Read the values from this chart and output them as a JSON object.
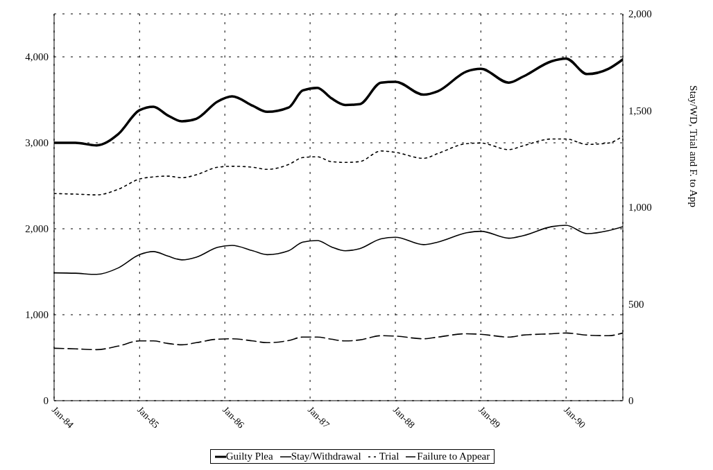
{
  "chart_data": {
    "type": "line",
    "y2label": "Stay/WD, Trial and F. to App",
    "x": [
      "1984-01",
      "1984-04",
      "1984-07",
      "1984-10",
      "1985-01",
      "1985-03",
      "1985-05",
      "1985-07",
      "1985-09",
      "1985-12",
      "1986-02",
      "1986-05",
      "1986-07",
      "1986-10",
      "1986-12",
      "1987-02",
      "1987-04",
      "1987-06",
      "1987-08",
      "1987-11",
      "1988-01",
      "1988-05",
      "1988-07",
      "1988-11",
      "1989-01",
      "1989-05",
      "1989-07",
      "1989-11",
      "1990-01",
      "1990-04",
      "1990-07",
      "1990-09"
    ],
    "series": [
      {
        "name": "Guilty Plea",
        "color": "#000000",
        "line_style": "solid",
        "values": [
          3000,
          3000,
          2970,
          3100,
          3380,
          3420,
          3320,
          3250,
          3280,
          3480,
          3540,
          3430,
          3360,
          3410,
          3610,
          3640,
          3520,
          3440,
          3450,
          3700,
          3710,
          3560,
          3600,
          3830,
          3860,
          3700,
          3770,
          3950,
          3980,
          3800,
          3860,
          3970
        ]
      },
      {
        "name": "Stay/Withdrawal",
        "color": "#000000",
        "line_style": "solid",
        "axis": "y2",
        "values": [
          661,
          659,
          653,
          686,
          755,
          771,
          748,
          728,
          742,
          793,
          803,
          775,
          755,
          775,
          820,
          828,
          796,
          775,
          786,
          837,
          845,
          807,
          820,
          868,
          876,
          840,
          853,
          900,
          907,
          864,
          879,
          900
        ]
      },
      {
        "name": "Trial",
        "color": "#000000",
        "line_style": "dotted",
        "axis": "y2",
        "values": [
          1071,
          1068,
          1064,
          1093,
          1146,
          1157,
          1161,
          1153,
          1168,
          1207,
          1212,
          1207,
          1196,
          1221,
          1257,
          1261,
          1236,
          1232,
          1236,
          1291,
          1284,
          1253,
          1278,
          1329,
          1332,
          1298,
          1318,
          1353,
          1353,
          1325,
          1332,
          1368
        ]
      },
      {
        "name": "Failure to Appear",
        "color": "#000000",
        "line_style": "dashed",
        "axis": "y2",
        "values": [
          271,
          268,
          264,
          282,
          309,
          309,
          296,
          289,
          300,
          318,
          320,
          309,
          300,
          311,
          329,
          329,
          318,
          309,
          314,
          336,
          334,
          320,
          329,
          346,
          343,
          329,
          339,
          346,
          350,
          339,
          336,
          350
        ]
      }
    ],
    "xlim": [
      "1984-01",
      "1990-09"
    ],
    "xticks": [
      {
        "value": "1984-01",
        "label": "Jan-84"
      },
      {
        "value": "1985-01",
        "label": "Jan-85"
      },
      {
        "value": "1986-01",
        "label": "Jan-86"
      },
      {
        "value": "1987-01",
        "label": "Jan-87"
      },
      {
        "value": "1988-01",
        "label": "Jan-88"
      },
      {
        "value": "1989-01",
        "label": "Jan-89"
      },
      {
        "value": "1990-01",
        "label": "Jan-90"
      }
    ],
    "ylim": [
      0,
      4500
    ],
    "yticks": [
      0,
      {
        "value": 1000,
        "label": "1,000"
      },
      {
        "value": 2000,
        "label": "2,000"
      },
      {
        "value": 3000,
        "label": "3,000"
      },
      {
        "value": 4000,
        "label": "4,000"
      }
    ],
    "y2lim": [
      0,
      2000
    ],
    "y2ticks": [
      0,
      500,
      {
        "value": 1000,
        "label": "1,000"
      },
      {
        "value": 1500,
        "label": "1,500"
      },
      {
        "value": 2000,
        "label": "2,000"
      }
    ],
    "grid": true,
    "legend": "bottom"
  }
}
